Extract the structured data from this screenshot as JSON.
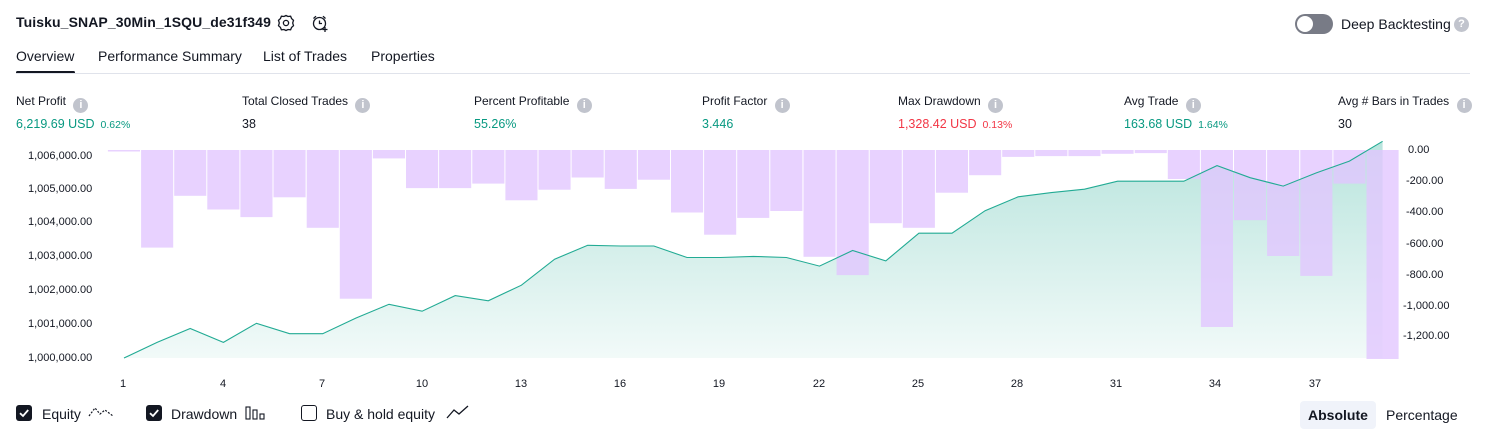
{
  "header": {
    "strategy_name": "Tuisku_SNAP_30Min_1SQU_de31f349",
    "deep_backtesting_label": "Deep Backtesting",
    "deep_backtesting_enabled": false
  },
  "tabs": [
    {
      "label": "Overview",
      "active": true
    },
    {
      "label": "Performance Summary",
      "active": false
    },
    {
      "label": "List of Trades",
      "active": false
    },
    {
      "label": "Properties",
      "active": false
    }
  ],
  "stats": [
    {
      "label": "Net Profit",
      "value": "6,219.69 USD",
      "pct": "0.62%",
      "color": "#089981"
    },
    {
      "label": "Total Closed Trades",
      "value": "38",
      "pct": "",
      "color": "#131722"
    },
    {
      "label": "Percent Profitable",
      "value": "55.26%",
      "pct": "",
      "color": "#089981"
    },
    {
      "label": "Profit Factor",
      "value": "3.446",
      "pct": "",
      "color": "#089981"
    },
    {
      "label": "Max Drawdown",
      "value": "1,328.42 USD",
      "pct": "0.13%",
      "color": "#f23645"
    },
    {
      "label": "Avg Trade",
      "value": "163.68 USD",
      "pct": "1.64%",
      "color": "#089981"
    },
    {
      "label": "Avg # Bars in Trades",
      "value": "30",
      "pct": "",
      "color": "#131722"
    }
  ],
  "chart_data": {
    "type": "line+bar",
    "left_axis_ticks": [
      "1,006,000.00",
      "1,005,000.00",
      "1,004,000.00",
      "1,003,000.00",
      "1,002,000.00",
      "1,001,000.00",
      "1,000,000.00"
    ],
    "right_axis_ticks": [
      "0.00",
      "-200.00",
      "-400.00",
      "-600.00",
      "-800.00",
      "-1,000.00",
      "-1,200.00"
    ],
    "x_ticks": [
      "1",
      "4",
      "7",
      "10",
      "13",
      "16",
      "19",
      "22",
      "25",
      "28",
      "31",
      "34",
      "37"
    ],
    "equity": {
      "color": "#22ab94",
      "ylim": [
        1000000,
        1006000
      ],
      "x": [
        1,
        2,
        3,
        4,
        5,
        6,
        7,
        8,
        9,
        10,
        11,
        12,
        13,
        14,
        15,
        16,
        17,
        18,
        19,
        20,
        21,
        22,
        23,
        24,
        25,
        26,
        27,
        28,
        29,
        30,
        31,
        32,
        33,
        34,
        35,
        36,
        37,
        38,
        39
      ],
      "values": [
        1000000,
        1000450,
        1000850,
        1000450,
        1001000,
        1000700,
        1000700,
        1001150,
        1001550,
        1001350,
        1001800,
        1001650,
        1002100,
        1002850,
        1003250,
        1003230,
        1003230,
        1002900,
        1002900,
        1002930,
        1002900,
        1002650,
        1003100,
        1002800,
        1003600,
        1003600,
        1004250,
        1004650,
        1004770,
        1004870,
        1005100,
        1005100,
        1005100,
        1005550,
        1005200,
        1004960,
        1005340,
        1005680,
        1006250
      ]
    },
    "drawdown": {
      "color": "#e1c5ff",
      "ylim": [
        -1370,
        0
      ],
      "x": [
        1,
        2,
        3,
        4,
        5,
        6,
        7,
        8,
        9,
        10,
        11,
        12,
        13,
        14,
        15,
        16,
        17,
        18,
        19,
        20,
        21,
        22,
        23,
        24,
        25,
        26,
        27,
        28,
        29,
        30,
        31,
        32,
        33,
        34,
        35,
        36,
        37,
        38,
        39
      ],
      "values": [
        -10,
        -640,
        -300,
        -390,
        -440,
        -310,
        -510,
        -975,
        -55,
        -250,
        -250,
        -220,
        -330,
        -260,
        -180,
        -255,
        -195,
        -410,
        -555,
        -445,
        -400,
        -700,
        -820,
        -480,
        -510,
        -280,
        -165,
        -45,
        -40,
        -40,
        -25,
        -20,
        -190,
        -1160,
        -460,
        -695,
        -825,
        -220,
        -1370
      ]
    }
  },
  "legend": {
    "equity_label": "Equity",
    "equity_checked": true,
    "drawdown_label": "Drawdown",
    "drawdown_checked": true,
    "buyhold_label": "Buy & hold equity",
    "buyhold_checked": false
  },
  "mode_buttons": {
    "absolute": "Absolute",
    "percentage": "Percentage",
    "active": "absolute"
  }
}
